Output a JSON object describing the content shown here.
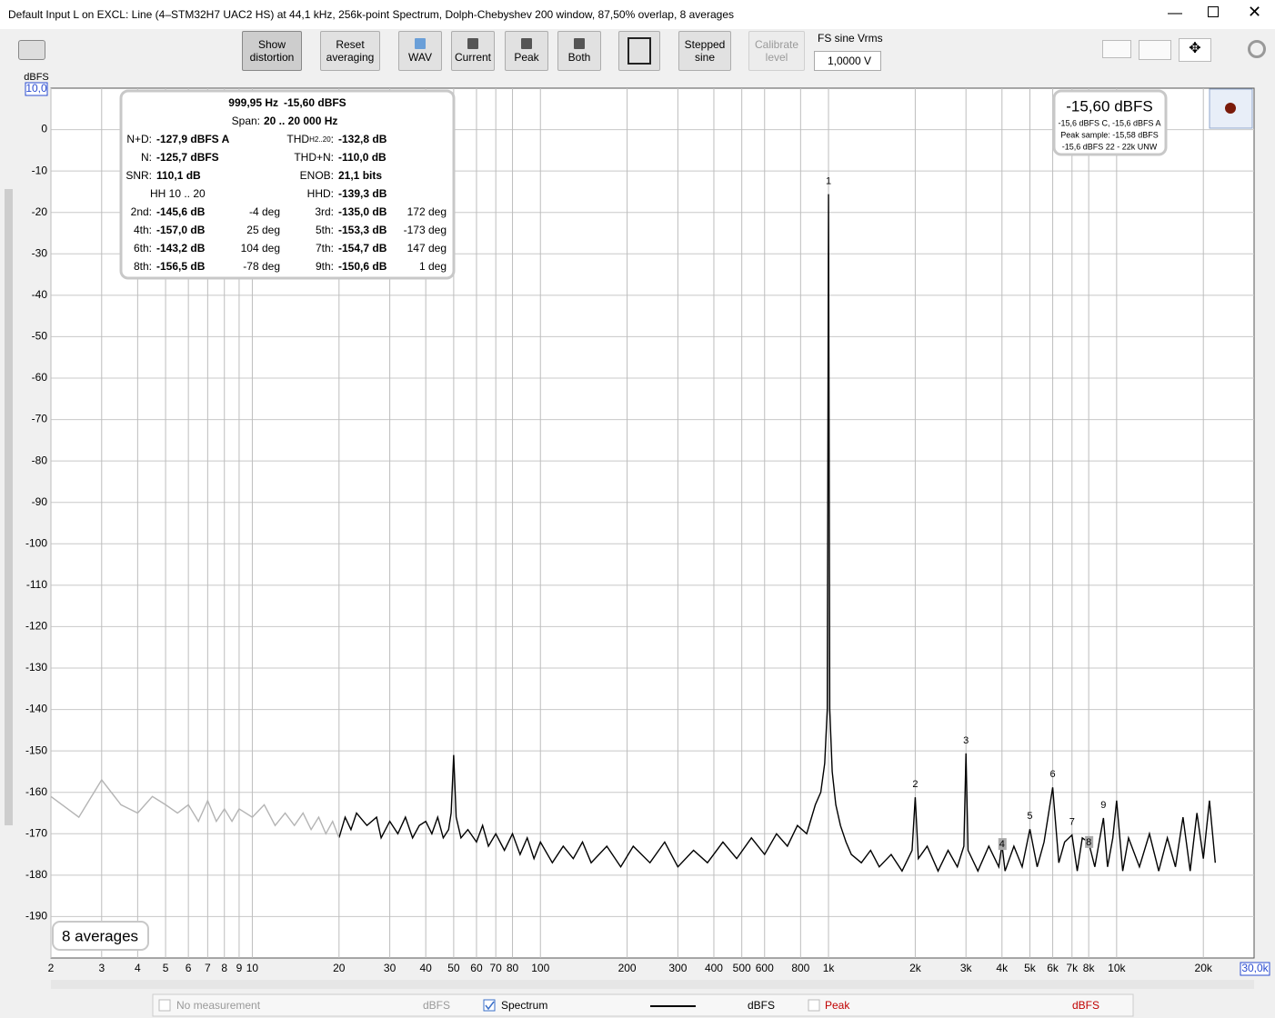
{
  "window": {
    "title": "Default Input L on EXCL: Line (4–STM32H7 UAC2 HS) at 44,1 kHz, 256k-point Spectrum, Dolph-Chebyshev 200 window, 87,50% overlap, 8 averages"
  },
  "toolbar": {
    "show_distortion": [
      "Show",
      "distortion"
    ],
    "reset_averaging": [
      "Reset",
      "averaging"
    ],
    "wav": "WAV",
    "current": "Current",
    "peak": "Peak",
    "both": "Both",
    "stepped_sine": [
      "Stepped",
      "sine"
    ],
    "calibrate_level": [
      "Calibrate",
      "level"
    ],
    "fs_label": "FS sine Vrms",
    "fs_value": "1,0000 V"
  },
  "stats": {
    "header": [
      "999,95 Hz",
      "-15,60 dBFS"
    ],
    "span": [
      "Span:",
      "20 .. 20 000 Hz"
    ],
    "thd_label": "THD",
    "thd_sub": "H2..20",
    "thd_colon": ":",
    "rows": [
      [
        "N+D:",
        "-127,9 dBFS A",
        null,
        null,
        "-132,8 dB",
        null
      ],
      [
        "N:",
        "-125,7 dBFS",
        null,
        "THD+N:",
        "-110,0 dB",
        null
      ],
      [
        "SNR:",
        "110,1 dB",
        null,
        "ENOB:",
        "21,1 bits",
        null
      ],
      [
        "HH 10 .. 20",
        null,
        null,
        "HHD:",
        "-139,3 dB",
        null
      ],
      [
        "2nd:",
        "-145,6 dB",
        "-4 deg",
        "3rd:",
        "-135,0 dB",
        "172 deg"
      ],
      [
        "4th:",
        "-157,0 dB",
        "25 deg",
        "5th:",
        "-153,3 dB",
        "-173 deg"
      ],
      [
        "6th:",
        "-143,2 dB",
        "104 deg",
        "7th:",
        "-154,7 dB",
        "147 deg"
      ],
      [
        "8th:",
        "-156,5 dB",
        "-78 deg",
        "9th:",
        "-150,6 dB",
        "1 deg"
      ]
    ]
  },
  "level_box": {
    "main": "-15,60 dBFS",
    "lines": [
      "-15,6 dBFS C, -15,6 dBFS A",
      "Peak sample: -15,58 dBFS",
      "-15,6 dBFS 22 - 22k UNW"
    ]
  },
  "averages_box": "8 averages",
  "legend_bar": {
    "no_measurement": "No measurement",
    "unit_1": "dBFS",
    "spectrum": "Spectrum",
    "unit_2": "dBFS",
    "peak": "Peak",
    "unit_3": "dBFS"
  },
  "chart_data": {
    "type": "line",
    "y_label": "dBFS",
    "range_labels": {
      "y_max": "10,0",
      "x_max": "30,0k"
    },
    "xscale": "log",
    "grid": true,
    "xlim": [
      2,
      30000
    ],
    "ylim": [
      -200,
      10
    ],
    "yticks": [
      0,
      -10,
      -20,
      -30,
      -40,
      -50,
      -60,
      -70,
      -80,
      -90,
      -100,
      -110,
      -120,
      -130,
      -140,
      -150,
      -160,
      -170,
      -180,
      -190
    ],
    "xticks": [
      2,
      3,
      4,
      5,
      6,
      7,
      8,
      9,
      10,
      20,
      30,
      40,
      50,
      60,
      70,
      80,
      100,
      200,
      300,
      400,
      500,
      600,
      800,
      {
        "value": 1000,
        "label": "1k"
      },
      {
        "value": 2000,
        "label": "2k"
      },
      {
        "value": 3000,
        "label": "3k"
      },
      {
        "value": 4000,
        "label": "4k"
      },
      {
        "value": 5000,
        "label": "5k"
      },
      {
        "value": 6000,
        "label": "6k"
      },
      {
        "value": 7000,
        "label": "7k"
      },
      {
        "value": 8000,
        "label": "8k"
      },
      {
        "value": 10000,
        "label": "10k"
      },
      {
        "value": 20000,
        "label": "20k"
      }
    ],
    "x": [
      2,
      2.5,
      3,
      3.5,
      4,
      4.5,
      5,
      5.5,
      6,
      6.5,
      7,
      7.5,
      8,
      8.5,
      9,
      10,
      11,
      12,
      13,
      14,
      15,
      16,
      17,
      18,
      19,
      20,
      21,
      22,
      23,
      25,
      27,
      28,
      30,
      32,
      34,
      36,
      38,
      40,
      42,
      44,
      46,
      48,
      49,
      50,
      51,
      53,
      56,
      60,
      63,
      66,
      70,
      75,
      80,
      85,
      90,
      95,
      100,
      110,
      120,
      130,
      140,
      150,
      170,
      190,
      210,
      240,
      270,
      300,
      340,
      380,
      430,
      480,
      540,
      600,
      660,
      720,
      780,
      840,
      900,
      940,
      970,
      990,
      1000,
      1010,
      1030,
      1060,
      1100,
      1150,
      1200,
      1300,
      1400,
      1500,
      1650,
      1800,
      1950,
      2000,
      2050,
      2200,
      2400,
      2600,
      2800,
      2950,
      3000,
      3050,
      3300,
      3600,
      3900,
      4000,
      4100,
      4400,
      4700,
      5000,
      5300,
      5600,
      6000,
      6300,
      6600,
      7000,
      7300,
      7600,
      8000,
      8400,
      8800,
      9000,
      9300,
      9700,
      10000,
      10500,
      11000,
      12000,
      13000,
      14000,
      15000,
      16000,
      17000,
      18000,
      19000,
      20000,
      21000,
      22000
    ],
    "series": [
      {
        "name": "Spectrum",
        "color": "#000000",
        "values": [
          null,
          null,
          null,
          null,
          null,
          null,
          null,
          null,
          null,
          null,
          null,
          null,
          null,
          null,
          null,
          null,
          null,
          null,
          null,
          null,
          null,
          null,
          null,
          null,
          null,
          -171,
          -166,
          -169,
          -165,
          -168,
          -166,
          -171,
          -167,
          -170,
          -166,
          -171,
          -168,
          -167,
          -170,
          -166,
          -171,
          -169,
          -165,
          -151,
          -166,
          -171,
          -169,
          -172,
          -168,
          -173,
          -170,
          -174,
          -170,
          -175,
          -171,
          -176,
          -172,
          -177,
          -173,
          -176,
          -172,
          -177,
          -173,
          -178,
          -173,
          -177,
          -172,
          -178,
          -174,
          -177,
          -172,
          -176,
          -171,
          -175,
          -170,
          -173,
          -168,
          -170,
          -163,
          -160,
          -153,
          -140,
          -15.6,
          -140,
          -155,
          -163,
          -168,
          -172,
          -175,
          -177,
          -174,
          -178,
          -175,
          -179,
          -174,
          -161.2,
          -176,
          -173,
          -179,
          -174,
          -178,
          -173,
          -150.6,
          -174,
          -179,
          -173,
          -178,
          -172.6,
          -179,
          -173,
          -178,
          -168.9,
          -178,
          -172,
          -158.8,
          -177,
          -172,
          -170.3,
          -179,
          -171,
          -172.1,
          -178,
          -170,
          -166.2,
          -178,
          -171,
          -162,
          -179,
          -171,
          -178,
          -170,
          -179,
          -171,
          -178,
          -166,
          -179,
          -165,
          -176,
          -162,
          -177
        ]
      },
      {
        "color": "#b4b4b4",
        "values": [
          -161,
          -166,
          -157,
          -163,
          -165,
          -161,
          -163,
          -165,
          -163,
          -167,
          -162,
          -167,
          -164,
          -167,
          -164,
          -166,
          -163,
          -168,
          -165,
          -168,
          -165,
          -169,
          -166,
          -170,
          -167,
          -171,
          null,
          null,
          null,
          null,
          null,
          null,
          null,
          null,
          null,
          null,
          null,
          null,
          null,
          null,
          null,
          null,
          null,
          null,
          null,
          null,
          null,
          null,
          null,
          null,
          null,
          null,
          null,
          null,
          null,
          null,
          null,
          null,
          null,
          null,
          null,
          null,
          null,
          null,
          null,
          null,
          null,
          null,
          null,
          null,
          null,
          null,
          null,
          null,
          null,
          null,
          null,
          null,
          null,
          null,
          null,
          null,
          null,
          null,
          null,
          null,
          null,
          null,
          null,
          null,
          null,
          null,
          null,
          null,
          null,
          null,
          null,
          null,
          null,
          null,
          null,
          null,
          null,
          null,
          null,
          null,
          null,
          null,
          null,
          null,
          null,
          null,
          null,
          null,
          null,
          null,
          null,
          null,
          null,
          null,
          null,
          null,
          null,
          null,
          null,
          null,
          null,
          null,
          null,
          null,
          null,
          null,
          null,
          null,
          null,
          null,
          null,
          null,
          null,
          null
        ]
      }
    ],
    "annotations": [
      {
        "label": "1",
        "x": 1000,
        "y": -15.6
      },
      {
        "label": "2",
        "x": 2000,
        "y": -161.2
      },
      {
        "label": "3",
        "x": 3000,
        "y": -150.6
      },
      {
        "label": "4",
        "x": 4000,
        "y": -172.6,
        "boxed": true
      },
      {
        "label": "5",
        "x": 5000,
        "y": -168.9
      },
      {
        "label": "6",
        "x": 6000,
        "y": -158.8
      },
      {
        "label": "7",
        "x": 7000,
        "y": -170.3
      },
      {
        "label": "8",
        "x": 8000,
        "y": -172.1,
        "boxed": true
      },
      {
        "label": "9",
        "x": 9000,
        "y": -166.2
      }
    ]
  }
}
